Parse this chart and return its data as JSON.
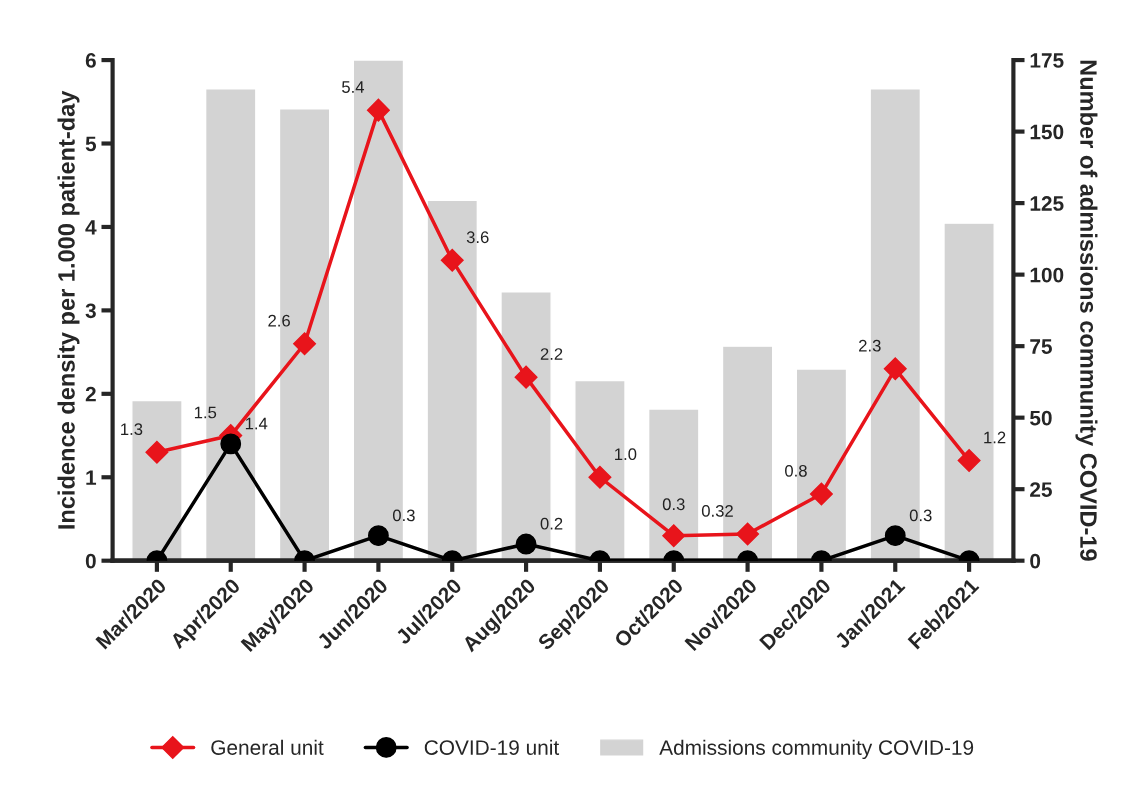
{
  "chart_data": {
    "type": "line",
    "ylabel": "Incidence density per 1.000 patient-day",
    "y2label": "Number of admissions community COVID-19",
    "categories": [
      "Mar/2020",
      "Apr/2020",
      "May/2020",
      "Jun/2020",
      "Jul/2020",
      "Aug/2020",
      "Sep/2020",
      "Oct/2020",
      "Nov/2020",
      "Dec/2020",
      "Jan/2021",
      "Feb/2021"
    ],
    "series": [
      {
        "name": "General unit",
        "color": "#e8141b",
        "marker": "diamond",
        "values": [
          1.3,
          1.5,
          2.6,
          5.4,
          3.6,
          2.2,
          1.0,
          0.3,
          0.32,
          0.8,
          2.3,
          1.2
        ],
        "value_labels": [
          "1.3",
          "1.5",
          "2.6",
          "5.4",
          "3.6",
          "2.2",
          "1.0",
          "0.3",
          "0.32",
          "0.8",
          "2.3",
          "1.2"
        ]
      },
      {
        "name": "COVID-19 unit",
        "color": "#000000",
        "marker": "circle",
        "values": [
          0,
          1.4,
          0,
          0.3,
          0,
          0.2,
          0,
          0,
          0,
          0,
          0.3,
          0
        ],
        "value_labels": [
          null,
          "1.4",
          null,
          "0.3",
          null,
          "0.2",
          null,
          null,
          null,
          null,
          "0.3",
          null
        ]
      },
      {
        "name": "Admissions community COVID-19",
        "type": "bar",
        "axis": "y2",
        "color": "#d3d3d3",
        "values": [
          56,
          165,
          158,
          175,
          126,
          94,
          63,
          53,
          75,
          67,
          165,
          118
        ]
      }
    ],
    "ylim": [
      0,
      6
    ],
    "yticks": [
      0,
      1,
      2,
      3,
      4,
      5,
      6
    ],
    "y2lim": [
      0,
      175
    ],
    "y2ticks": [
      0,
      25,
      50,
      75,
      100,
      125,
      150,
      175
    ],
    "grid": false,
    "legend": "bottom",
    "line_style": "solid"
  }
}
